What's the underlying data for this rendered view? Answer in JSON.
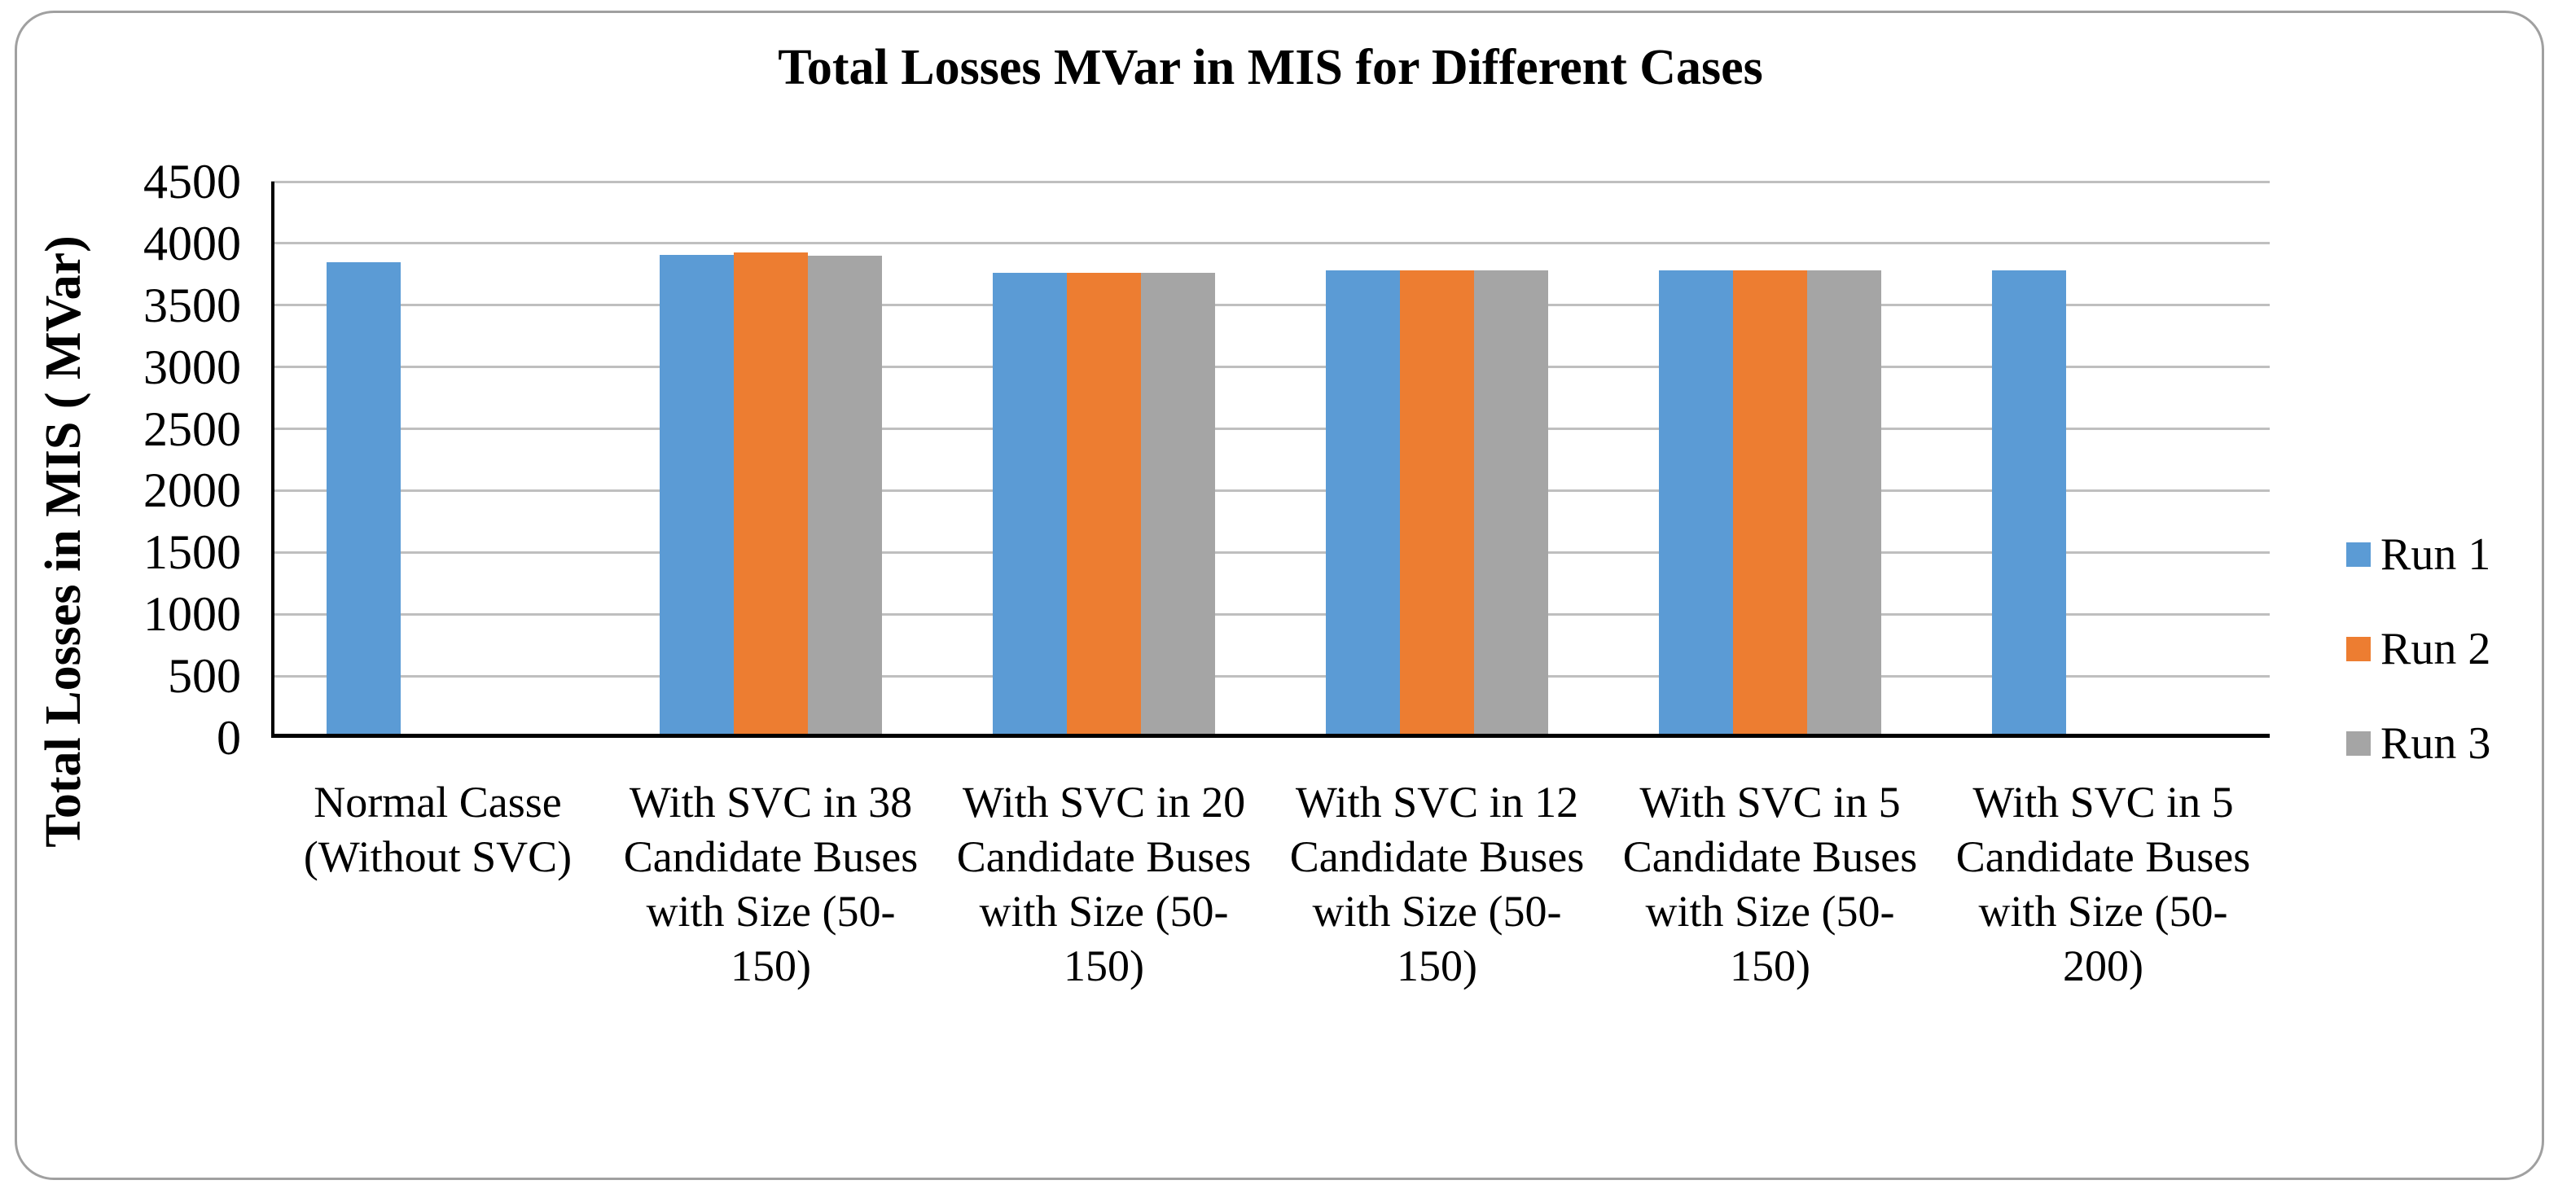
{
  "chart_data": {
    "type": "bar",
    "title": "Total Losses MVar in MIS for Different Cases",
    "ylabel": "Total Losses in MIS ( MVar)",
    "xlabel": "",
    "ylim": [
      0,
      4500
    ],
    "yticks": [
      0,
      500,
      1000,
      1500,
      2000,
      2500,
      3000,
      3500,
      4000,
      4500
    ],
    "grid": true,
    "legend_position": "right",
    "categories": [
      "Normal Casse (Without SVC)",
      "With SVC in 38 Candidate Buses with Size (50-150)",
      "With SVC in 20 Candidate Buses with Size (50-150)",
      "With SVC in 12 Candidate Buses with Size (50-150)",
      "With SVC in 5 Candidate Buses with Size (50-150)",
      "With SVC in 5 Candidate Buses with Size (50-200)"
    ],
    "series": [
      {
        "name": "Run 1",
        "color": "#5B9BD5",
        "values": [
          3850,
          3905,
          3760,
          3783,
          3783,
          3783
        ]
      },
      {
        "name": "Run 2",
        "color": "#ED7D31",
        "values": [
          null,
          3925,
          3760,
          3783,
          3783,
          null
        ]
      },
      {
        "name": "Run 3",
        "color": "#A5A5A5",
        "values": [
          null,
          3900,
          3763,
          3780,
          3783,
          null
        ]
      }
    ]
  },
  "style": {
    "background": "#FFFFFF",
    "frame_border_color": "#A0A0A0",
    "grid_color": "#BFBFBF",
    "axis_color": "#000000",
    "text_color": "#000000"
  }
}
